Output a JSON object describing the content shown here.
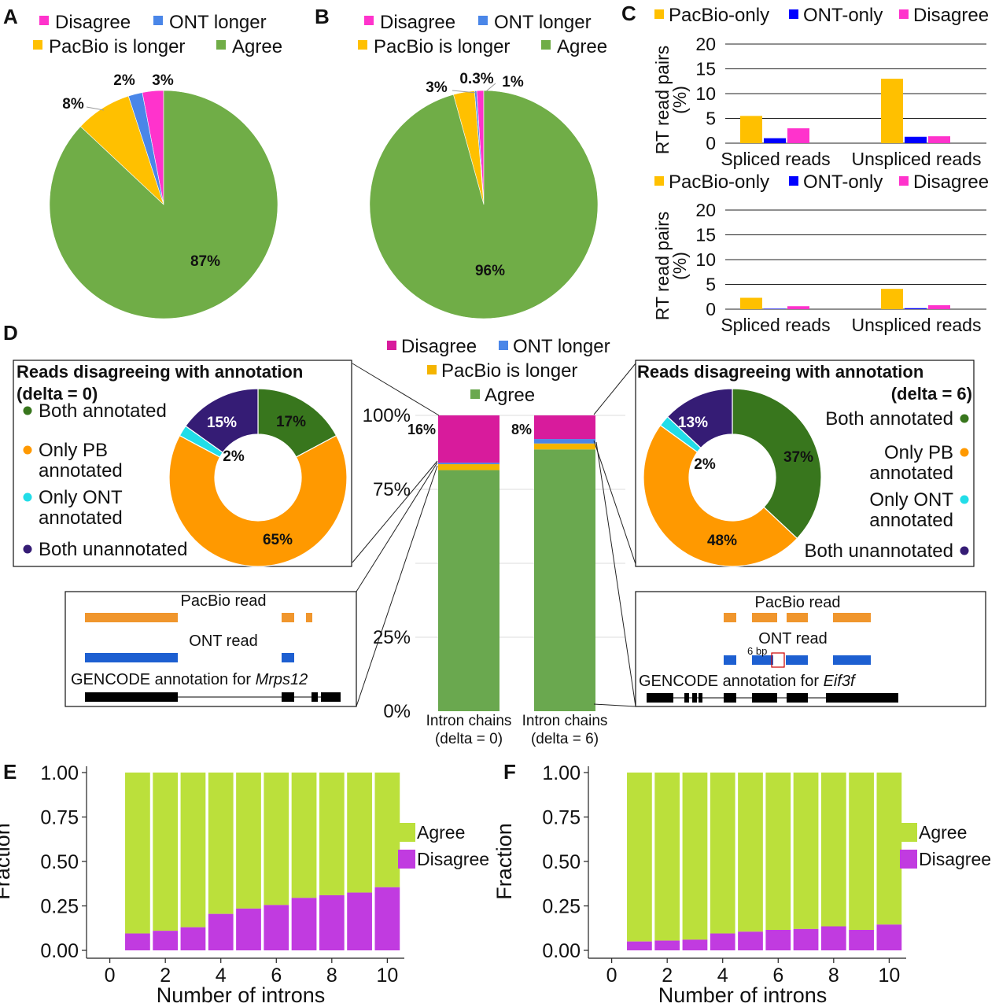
{
  "colors": {
    "agree": "#70ad47",
    "pacbio_longer": "#ffc000",
    "ont_longer": "#4a86e8",
    "disagree": "#ff33cc",
    "pacbio_only": "#ffc000",
    "ont_only": "#0000ff",
    "d_agree": "#6aa84f",
    "d_disagree": "#d81b9c",
    "d_pacbio": "#f4b400",
    "d_ont": "#4a86e8",
    "both_annotated": "#38761d",
    "only_pb": "#ff9900",
    "only_ont": "#22dde8",
    "both_unannotated": "#351c75",
    "ef_agree": "#bbe03b",
    "ef_disagree": "#c13be0",
    "read_pacbio": "#f0962d",
    "read_ont": "#1d5fd1",
    "annotation": "#000000",
    "gap_box": "#cc0000"
  },
  "panel_labels": {
    "A": "A",
    "B": "B",
    "C": "C",
    "D": "D",
    "E": "E",
    "F": "F"
  },
  "chart_data": [
    {
      "id": "A",
      "type": "pie",
      "legend": [
        "Disagree",
        "ONT longer",
        "PacBio is longer",
        "Agree"
      ],
      "slices": [
        {
          "label": "Disagree",
          "value": 3,
          "text": "3%"
        },
        {
          "label": "ONT longer",
          "value": 2,
          "text": "2%"
        },
        {
          "label": "PacBio is longer",
          "value": 8,
          "text": "8%"
        },
        {
          "label": "Agree",
          "value": 87,
          "text": "87%"
        }
      ]
    },
    {
      "id": "B",
      "type": "pie",
      "legend": [
        "Disagree",
        "ONT longer",
        "PacBio is longer",
        "Agree"
      ],
      "slices": [
        {
          "label": "Disagree",
          "value": 1,
          "text": "1%"
        },
        {
          "label": "ONT longer",
          "value": 0.3,
          "text": "0.3%"
        },
        {
          "label": "PacBio is longer",
          "value": 3,
          "text": "3%"
        },
        {
          "label": "Agree",
          "value": 96,
          "text": "96%"
        }
      ]
    },
    {
      "id": "C-top",
      "type": "bar",
      "legend": [
        "PacBio-only",
        "ONT-only",
        "Disagree"
      ],
      "categories": [
        "Spliced reads",
        "Unspliced reads"
      ],
      "series": [
        {
          "name": "PacBio-only",
          "values": [
            5.5,
            13
          ]
        },
        {
          "name": "ONT-only",
          "values": [
            1,
            1.3
          ]
        },
        {
          "name": "Disagree",
          "values": [
            3,
            1.4
          ]
        }
      ],
      "ylabel_lines": [
        "RT read pairs",
        "(%)"
      ],
      "yticks": [
        "0",
        "5",
        "10",
        "15",
        "20"
      ],
      "ylim": [
        0,
        20
      ],
      "grid": true
    },
    {
      "id": "C-bottom",
      "type": "bar",
      "legend": [
        "PacBio-only",
        "ONT-only",
        "Disagree"
      ],
      "categories": [
        "Spliced reads",
        "Unspliced reads"
      ],
      "series": [
        {
          "name": "PacBio-only",
          "values": [
            2.3,
            4.1
          ]
        },
        {
          "name": "ONT-only",
          "values": [
            0.1,
            0.2
          ]
        },
        {
          "name": "Disagree",
          "values": [
            0.6,
            0.8
          ]
        }
      ],
      "ylabel_lines": [
        "RT read pairs",
        "(%)"
      ],
      "yticks": [
        "0",
        "5",
        "10",
        "15",
        "20"
      ],
      "ylim": [
        0,
        20
      ],
      "grid": true
    },
    {
      "id": "D-stacked",
      "type": "bar",
      "stacked": true,
      "legend": [
        "Disagree",
        "ONT longer",
        "PacBio is longer",
        "Agree"
      ],
      "categories_lines": [
        [
          "Intron chains",
          "(delta = 0)"
        ],
        [
          "Intron chains",
          "(delta = 6)"
        ]
      ],
      "series": [
        {
          "name": "Agree",
          "values": [
            81.5,
            88.5
          ]
        },
        {
          "name": "PacBio is longer",
          "values": [
            2,
            2
          ]
        },
        {
          "name": "ONT longer",
          "values": [
            0.5,
            1.5
          ]
        },
        {
          "name": "Disagree",
          "values": [
            16,
            8
          ]
        }
      ],
      "bar_labels": [
        "16%",
        "8%"
      ],
      "yticks": [
        "0%",
        "25%",
        "75%",
        "100%"
      ],
      "ytick_values": [
        0,
        25,
        75,
        100
      ],
      "ylim": [
        0,
        100
      ]
    },
    {
      "id": "D-donut-left",
      "type": "pie",
      "title_lines": [
        "Reads disagreeing with annotation",
        "(delta = 0)"
      ],
      "legend": [
        "Both annotated",
        "Only PB annotated",
        "Only ONT annotated",
        "Both unannotated"
      ],
      "legend_lines": [
        [
          "Both annotated"
        ],
        [
          "Only PB",
          "annotated"
        ],
        [
          "Only ONT",
          "annotated"
        ],
        [
          "Both unannotated"
        ]
      ],
      "slices": [
        {
          "label": "Both annotated",
          "value": 17,
          "text": "17%"
        },
        {
          "label": "Only PB annotated",
          "value": 65,
          "text": "65%"
        },
        {
          "label": "Only ONT annotated",
          "value": 2,
          "text": "2%"
        },
        {
          "label": "Both unannotated",
          "value": 15,
          "text": "15%"
        }
      ]
    },
    {
      "id": "D-donut-right",
      "type": "pie",
      "title_lines": [
        "Reads disagreeing with annotation",
        "(delta = 6)"
      ],
      "legend": [
        "Both annotated",
        "Only PB annotated",
        "Only ONT annotated",
        "Both unannotated"
      ],
      "legend_lines": [
        [
          "Both annotated"
        ],
        [
          "Only PB",
          "annotated"
        ],
        [
          "Only ONT",
          "annotated"
        ],
        [
          "Both unannotated"
        ]
      ],
      "slices": [
        {
          "label": "Both annotated",
          "value": 37,
          "text": "37%"
        },
        {
          "label": "Only PB annotated",
          "value": 48,
          "text": "48%"
        },
        {
          "label": "Only ONT annotated",
          "value": 2,
          "text": "2%"
        },
        {
          "label": "Both unannotated",
          "value": 13,
          "text": "13%"
        }
      ]
    },
    {
      "id": "E",
      "type": "bar",
      "stacked": true,
      "x": [
        1,
        2,
        3,
        4,
        5,
        6,
        7,
        8,
        9,
        10
      ],
      "series": [
        {
          "name": "Agree",
          "values": [
            0.905,
            0.89,
            0.87,
            0.795,
            0.765,
            0.745,
            0.705,
            0.69,
            0.675,
            0.645
          ]
        },
        {
          "name": "Disagree",
          "values": [
            0.095,
            0.11,
            0.13,
            0.205,
            0.235,
            0.255,
            0.295,
            0.31,
            0.325,
            0.355
          ]
        }
      ],
      "legend": [
        "Agree",
        "Disagree"
      ],
      "xlabel": "Number of introns",
      "ylabel": "Fraction",
      "xticks": [
        "0",
        "2",
        "4",
        "6",
        "8",
        "10"
      ],
      "yticks": [
        "0.00",
        "0.25",
        "0.50",
        "0.75",
        "1.00"
      ],
      "ylim": [
        0,
        1
      ]
    },
    {
      "id": "F",
      "type": "bar",
      "stacked": true,
      "x": [
        1,
        2,
        3,
        4,
        5,
        6,
        7,
        8,
        9,
        10
      ],
      "series": [
        {
          "name": "Agree",
          "values": [
            0.95,
            0.945,
            0.94,
            0.905,
            0.895,
            0.885,
            0.88,
            0.865,
            0.885,
            0.855
          ]
        },
        {
          "name": "Disagree",
          "values": [
            0.05,
            0.055,
            0.06,
            0.095,
            0.105,
            0.115,
            0.12,
            0.135,
            0.115,
            0.145
          ]
        }
      ],
      "legend": [
        "Agree",
        "Disagree"
      ],
      "xlabel": "Number of introns",
      "ylabel": "Fraction",
      "xticks": [
        "0",
        "2",
        "4",
        "6",
        "8",
        "10"
      ],
      "yticks": [
        "0.00",
        "0.25",
        "0.50",
        "0.75",
        "1.00"
      ],
      "ylim": [
        0,
        1
      ]
    }
  ],
  "read_diagrams": {
    "left": {
      "pacbio_label": "PacBio read",
      "ont_label": "ONT read",
      "annotation_prefix": "GENCODE annotation for ",
      "gene": "Mrps12"
    },
    "right": {
      "pacbio_label": "PacBio read",
      "ont_label": "ONT read",
      "annotation_prefix": "GENCODE annotation for ",
      "gene": "Eif3f",
      "gap_label": "6 bp"
    }
  }
}
